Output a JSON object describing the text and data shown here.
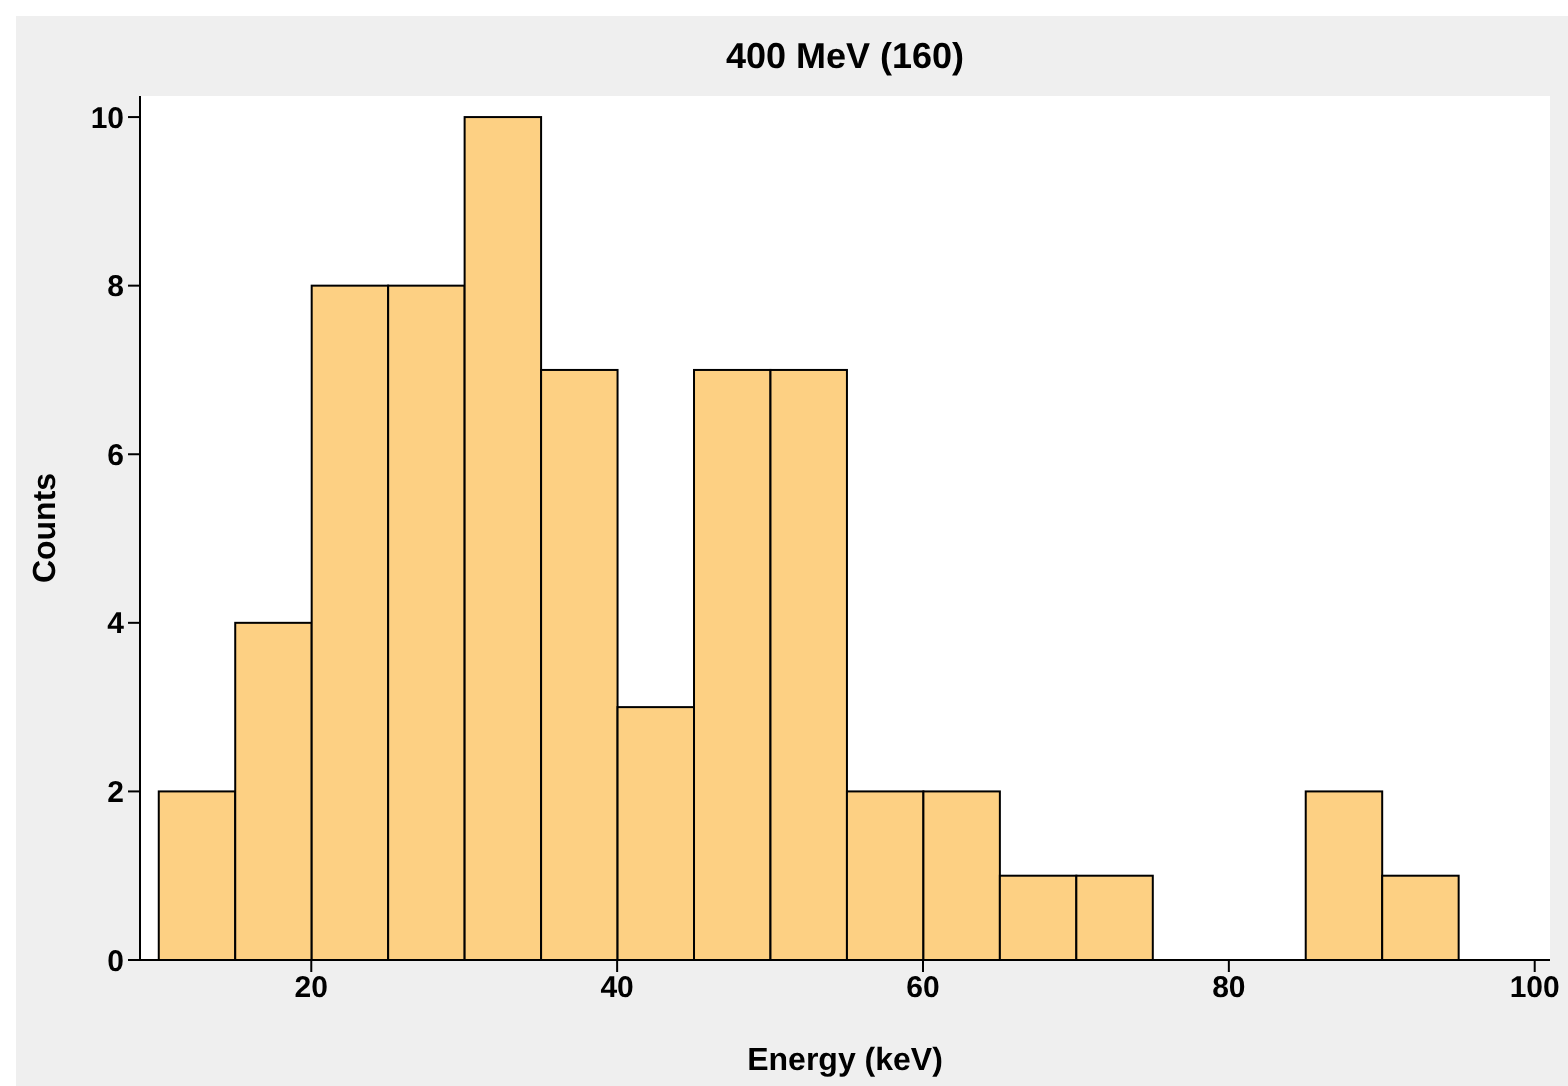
{
  "chart_data": {
    "type": "histogram",
    "title": "400 MeV (160)",
    "xlabel": "Energy (keV)",
    "ylabel": "Counts",
    "bins": [
      10,
      15,
      20,
      25,
      30,
      35,
      40,
      45,
      50,
      55,
      60,
      65,
      70,
      75,
      80,
      85,
      90,
      95
    ],
    "values": [
      2,
      4,
      8,
      8,
      10,
      7,
      3,
      7,
      7,
      2,
      2,
      1,
      1,
      0,
      0,
      2,
      1
    ],
    "color": "#fdd083",
    "xlim": [
      8.8,
      101
    ],
    "xticks": [
      20,
      40,
      60,
      80,
      100
    ],
    "ylim": [
      0,
      10.25
    ],
    "yticks": [
      0,
      2,
      4,
      6,
      8,
      10
    ]
  }
}
